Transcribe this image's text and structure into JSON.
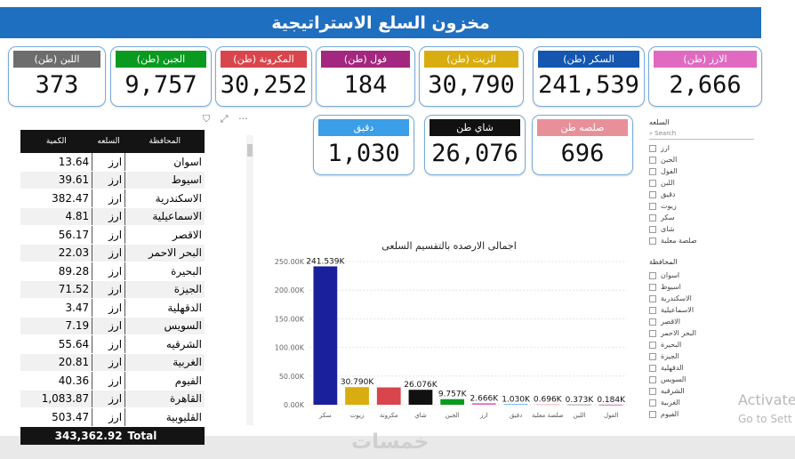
{
  "title": "مخزون السلع الاستراتيجية",
  "cards_top": [
    {
      "label": "اللبن (طن)",
      "value": "373",
      "color": "#6d6d6d"
    },
    {
      "label": "الجبن (طن)",
      "value": "9,757",
      "color": "#0a9a20"
    },
    {
      "label": "المكرونة (طن)",
      "value": "30,252",
      "color": "#d9454c"
    },
    {
      "label": "فول (طن)",
      "value": "184",
      "color": "#a3277e"
    },
    {
      "label": "الزيت (طن)",
      "value": "30,790",
      "color": "#d9ad0f"
    },
    {
      "label": "السكر (طن)",
      "value": "241,539",
      "color": "#1456b0"
    },
    {
      "label": "الارز (طن)",
      "value": "2,666",
      "color": "#e06ac0"
    }
  ],
  "cards_mid": [
    {
      "label": "دقيق",
      "value": "1,030",
      "color": "#3a9ee8"
    },
    {
      "label": "شاي طن",
      "value": "26,076",
      "color": "#111111"
    },
    {
      "label": "صلصه طن",
      "value": "696",
      "color": "#e8909a"
    }
  ],
  "table": {
    "headers": [
      "الكمية",
      "السلعه",
      "المحافظة"
    ],
    "rows": [
      {
        "q": "13.64",
        "c": "ارز",
        "g": "اسوان"
      },
      {
        "q": "39.61",
        "c": "ارز",
        "g": "اسيوط"
      },
      {
        "q": "382.47",
        "c": "ارز",
        "g": "الاسكندرية"
      },
      {
        "q": "4.81",
        "c": "ارز",
        "g": "الاسماعيلية"
      },
      {
        "q": "56.17",
        "c": "ارز",
        "g": "الاقصر"
      },
      {
        "q": "22.03",
        "c": "ارز",
        "g": "البحر الاحمر"
      },
      {
        "q": "89.28",
        "c": "ارز",
        "g": "البحيرة"
      },
      {
        "q": "71.52",
        "c": "ارز",
        "g": "الجيزة"
      },
      {
        "q": "3.47",
        "c": "ارز",
        "g": "الدقهلية"
      },
      {
        "q": "7.19",
        "c": "ارز",
        "g": "السويس"
      },
      {
        "q": "55.64",
        "c": "ارز",
        "g": "الشرقيه"
      },
      {
        "q": "20.81",
        "c": "ارز",
        "g": "الغربية"
      },
      {
        "q": "40.36",
        "c": "ارز",
        "g": "الفيوم"
      },
      {
        "q": "1,083.87",
        "c": "ارز",
        "g": "القاهرة"
      },
      {
        "q": "503.47",
        "c": "ارز",
        "g": "القليوبية"
      }
    ],
    "total_label": "Total",
    "total_value": "343,362.92"
  },
  "chart_data": {
    "type": "bar",
    "title": "اجمالى الارصده بالتقسيم السلعى",
    "categories": [
      "سكر",
      "زيوت",
      "مكرونة",
      "شاي",
      "الجبن",
      "ارز",
      "دقيق",
      "صلصة معلبة",
      "اللبن",
      "الفول"
    ],
    "values": [
      241.539,
      30.79,
      30.252,
      26.076,
      9.757,
      2.666,
      1.03,
      0.696,
      0.373,
      0.184
    ],
    "data_labels": [
      "241.539K",
      "30.790K",
      "",
      "26.076K",
      "9.757K",
      "2.666K",
      "1.030K",
      "0.696K",
      "0.373K",
      "0.184K"
    ],
    "colors": [
      "#1a1f9c",
      "#d9ad0f",
      "#d9454c",
      "#111111",
      "#0a9a20",
      "#e06ac0",
      "#3a9ee8",
      "#e8909a",
      "#6d6d6d",
      "#a3277e"
    ],
    "y_ticks": [
      "0.00K",
      "50.00K",
      "100.00K",
      "150.00K",
      "200.00K",
      "250.00K"
    ],
    "ylim": [
      0,
      250
    ],
    "grid": true
  },
  "slicer_commodity": {
    "title": "السلعه",
    "placeholder": "Search",
    "items": [
      "ارز",
      "الجبن",
      "الفول",
      "اللبن",
      "دقيق",
      "زيوت",
      "سكر",
      "شاى",
      "صلصة معلبة"
    ]
  },
  "slicer_gov": {
    "title": "المحافظة",
    "items": [
      "اسوان",
      "اسيوط",
      "الاسكندرية",
      "الاسماعيلية",
      "الاقصر",
      "البحر الاحمر",
      "البحيرة",
      "الجيزة",
      "الدقهلية",
      "السويس",
      "الشرقيه",
      "الغربية",
      "الفيوم"
    ]
  },
  "toolbar_icons": {
    "filter": "⛉",
    "focus": "⤢",
    "more": "···"
  },
  "watermark": {
    "line1": "Activate",
    "line2": "Go to Sett"
  },
  "logo_text": "خمسات"
}
